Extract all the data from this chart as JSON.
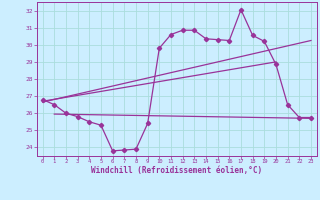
{
  "title": "Windchill (Refroidissement éolien,°C)",
  "bg_color": "#cceeff",
  "grid_color": "#aadddd",
  "line_color": "#993399",
  "xlim": [
    -0.5,
    23.5
  ],
  "ylim": [
    23.5,
    32.5
  ],
  "xticks": [
    0,
    1,
    2,
    3,
    4,
    5,
    6,
    7,
    8,
    9,
    10,
    11,
    12,
    13,
    14,
    15,
    16,
    17,
    18,
    19,
    20,
    21,
    22,
    23
  ],
  "yticks": [
    24,
    25,
    26,
    27,
    28,
    29,
    30,
    31,
    32
  ],
  "curve1_x": [
    0,
    1,
    2,
    3,
    4,
    5,
    6,
    7,
    8,
    9,
    10,
    11,
    12,
    13,
    14,
    15,
    16,
    17,
    18,
    19,
    20,
    21,
    22,
    23
  ],
  "curve1_y": [
    26.8,
    26.5,
    26.0,
    25.8,
    25.5,
    25.3,
    23.8,
    23.85,
    23.9,
    25.4,
    29.8,
    30.6,
    30.85,
    30.85,
    30.35,
    30.3,
    30.25,
    32.05,
    30.55,
    30.2,
    28.85,
    26.5,
    25.75,
    25.75
  ],
  "curve2_x": [
    0,
    20
  ],
  "curve2_y": [
    26.7,
    29.0
  ],
  "curve3_x": [
    0,
    23
  ],
  "curve3_y": [
    26.65,
    30.25
  ],
  "curve4_x": [
    1,
    23
  ],
  "curve4_y": [
    25.95,
    25.7
  ],
  "marker": "D",
  "marker_size": 2.2,
  "line_width": 0.9
}
